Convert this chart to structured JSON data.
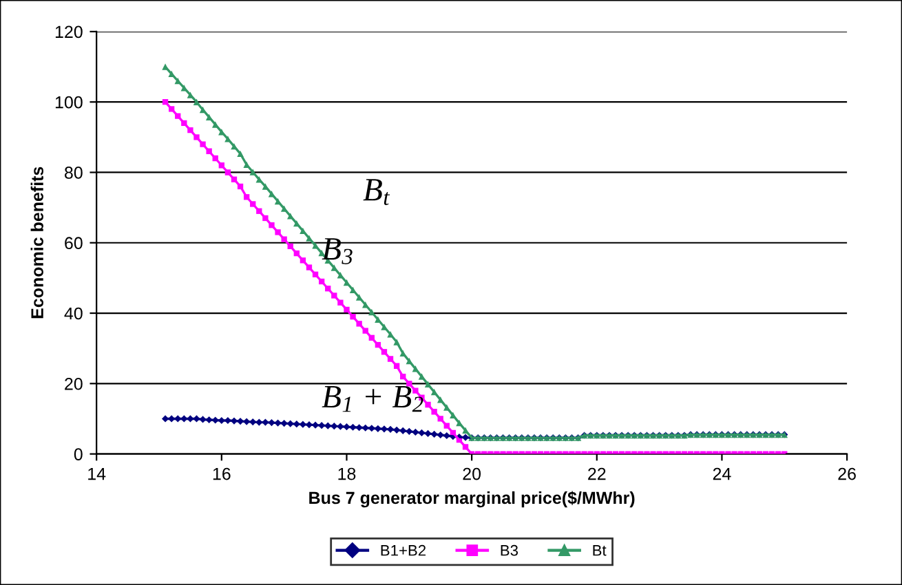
{
  "chart_data": {
    "type": "line",
    "xlabel": "Bus 7 generator marginal price($/MWhr)",
    "ylabel": "Economic benefits",
    "x": [
      15.1,
      15.2,
      15.3,
      15.4,
      15.5,
      15.6,
      15.7,
      15.8,
      15.9,
      16.0,
      16.1,
      16.2,
      16.3,
      16.4,
      16.5,
      16.6,
      16.7,
      16.8,
      16.9,
      17.0,
      17.1,
      17.2,
      17.3,
      17.4,
      17.5,
      17.6,
      17.7,
      17.8,
      17.9,
      18.0,
      18.1,
      18.2,
      18.3,
      18.4,
      18.5,
      18.6,
      18.7,
      18.8,
      18.9,
      19.0,
      19.1,
      19.2,
      19.3,
      19.4,
      19.5,
      19.6,
      19.7,
      19.8,
      19.9,
      20.0,
      20.1,
      20.2,
      20.3,
      20.4,
      20.5,
      20.6,
      20.7,
      20.8,
      20.9,
      21.0,
      21.1,
      21.2,
      21.3,
      21.4,
      21.5,
      21.6,
      21.7,
      21.8,
      21.9,
      22.0,
      22.1,
      22.2,
      22.3,
      22.4,
      22.5,
      22.6,
      22.7,
      22.8,
      22.9,
      23.0,
      23.1,
      23.2,
      23.3,
      23.4,
      23.5,
      23.6,
      23.7,
      23.8,
      23.9,
      24.0,
      24.1,
      24.2,
      24.3,
      24.4,
      24.5,
      24.6,
      24.7,
      24.8,
      24.9,
      25.0
    ],
    "series": [
      {
        "name": "B1+B2",
        "color": "#000080",
        "marker": "diamond",
        "values": [
          10,
          10,
          10,
          10,
          10,
          10,
          9.8,
          9.7,
          9.6,
          9.5,
          9.5,
          9.4,
          9.3,
          9.2,
          9.1,
          9,
          9,
          8.9,
          8.8,
          8.7,
          8.6,
          8.5,
          8.4,
          8.3,
          8.2,
          8.1,
          8,
          7.9,
          7.8,
          7.7,
          7.6,
          7.5,
          7.4,
          7.3,
          7.2,
          7.1,
          7,
          6.8,
          6.6,
          6.4,
          6.2,
          6,
          5.8,
          5.6,
          5.4,
          5.2,
          5,
          4.8,
          4.7,
          4.6,
          4.6,
          4.6,
          4.6,
          4.6,
          4.6,
          4.6,
          4.6,
          4.6,
          4.6,
          4.6,
          4.6,
          4.6,
          4.6,
          4.6,
          4.6,
          4.6,
          4.6,
          5.3,
          5.3,
          5.3,
          5.3,
          5.3,
          5.3,
          5.3,
          5.3,
          5.3,
          5.3,
          5.3,
          5.3,
          5.3,
          5.3,
          5.3,
          5.3,
          5.3,
          5.5,
          5.5,
          5.5,
          5.5,
          5.5,
          5.5,
          5.5,
          5.5,
          5.5,
          5.5,
          5.5,
          5.5,
          5.5,
          5.5,
          5.5,
          5.5
        ]
      },
      {
        "name": "B3",
        "color": "#ff00ff",
        "marker": "square",
        "values": [
          100,
          98,
          96,
          94,
          92,
          90,
          88,
          86,
          84,
          82,
          80,
          78,
          76,
          73,
          71,
          69,
          67,
          65,
          63,
          61,
          59,
          57,
          55,
          53,
          51,
          49,
          47,
          45,
          43,
          41,
          39,
          37,
          35,
          33,
          31,
          29,
          27,
          25,
          22,
          20,
          18,
          16,
          14,
          12,
          10,
          8,
          6,
          4,
          2,
          0,
          0,
          0,
          0,
          0,
          0,
          0,
          0,
          0,
          0,
          0,
          0,
          0,
          0,
          0,
          0,
          0,
          0,
          0,
          0,
          0,
          0,
          0,
          0,
          0,
          0,
          0,
          0,
          0,
          0,
          0,
          0,
          0,
          0,
          0,
          0,
          0,
          0,
          0,
          0,
          0,
          0,
          0,
          0,
          0,
          0,
          0,
          0,
          0,
          0,
          0
        ]
      },
      {
        "name": "Bt",
        "color": "#339966",
        "marker": "triangle",
        "values": [
          110,
          108,
          106,
          104,
          102,
          100,
          97.8,
          95.7,
          93.6,
          91.5,
          89.5,
          87.4,
          85.3,
          82.2,
          80.1,
          78,
          76,
          73.9,
          71.8,
          69.7,
          67.6,
          65.5,
          63.4,
          61.3,
          59.2,
          57.1,
          55,
          52.9,
          50.8,
          48.7,
          46.6,
          44.5,
          42.4,
          40.3,
          38.2,
          36.1,
          34,
          31.8,
          28.6,
          26.4,
          24.2,
          22,
          19.8,
          17.6,
          15.4,
          13.2,
          11,
          8.8,
          6.7,
          4.6,
          4.6,
          4.6,
          4.6,
          4.6,
          4.6,
          4.6,
          4.6,
          4.6,
          4.6,
          4.6,
          4.6,
          4.6,
          4.6,
          4.6,
          4.6,
          4.6,
          4.6,
          5.3,
          5.3,
          5.3,
          5.3,
          5.3,
          5.3,
          5.3,
          5.3,
          5.3,
          5.3,
          5.3,
          5.3,
          5.3,
          5.3,
          5.3,
          5.3,
          5.3,
          5.5,
          5.5,
          5.5,
          5.5,
          5.5,
          5.5,
          5.5,
          5.5,
          5.5,
          5.5,
          5.5,
          5.5,
          5.5,
          5.5,
          5.5,
          5.5
        ]
      }
    ],
    "annotations": [
      "B$_{t}$",
      "B$_{3}$",
      "B$_{1}$ + B$_{2}$"
    ],
    "xlim": [
      14,
      26
    ],
    "xticks": [
      14,
      16,
      18,
      20,
      22,
      24,
      26
    ],
    "ylim": [
      0,
      120
    ],
    "yticks": [
      0,
      20,
      40,
      60,
      80,
      100,
      120
    ],
    "grid": "y",
    "legend": "bottom",
    "line_style": "solid"
  }
}
